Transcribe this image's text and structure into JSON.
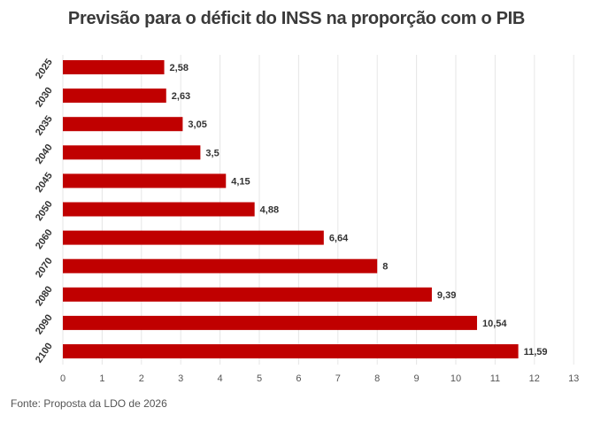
{
  "source": "Fonte: Proposta da LDO de 2026",
  "chart_data": {
    "type": "bar",
    "orientation": "horizontal",
    "title": "Previsão para o déficit do INSS na proporção com o PIB",
    "categories": [
      "2025",
      "2030",
      "2035",
      "2040",
      "2045",
      "2050",
      "2060",
      "2070",
      "2080",
      "2090",
      "2100"
    ],
    "values": [
      2.58,
      2.63,
      3.05,
      3.5,
      4.15,
      4.88,
      6.64,
      8,
      9.39,
      10.54,
      11.59
    ],
    "value_labels": [
      "2,58",
      "2,63",
      "3,05",
      "3,5",
      "4,15",
      "4,88",
      "6,64",
      "8",
      "9,39",
      "10,54",
      "11,59"
    ],
    "xlim": [
      0,
      13
    ],
    "xticks": [
      0,
      1,
      2,
      3,
      4,
      5,
      6,
      7,
      8,
      9,
      10,
      11,
      12,
      13
    ],
    "grid": true,
    "bar_color": "#c00000"
  }
}
